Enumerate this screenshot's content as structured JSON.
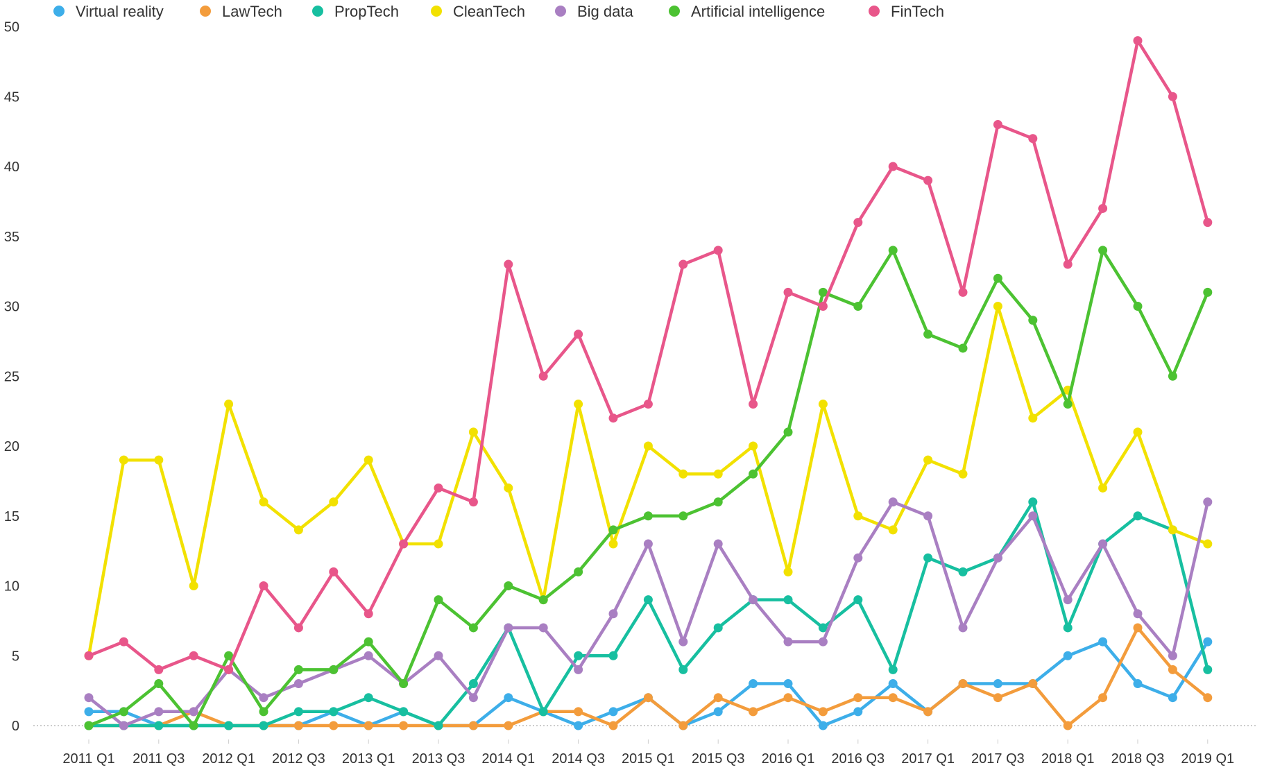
{
  "chart_data": {
    "type": "line",
    "title": "",
    "xlabel": "",
    "ylabel": "",
    "ylim": [
      0,
      50
    ],
    "y_ticks": [
      0,
      5,
      10,
      15,
      20,
      25,
      30,
      35,
      40,
      45,
      50
    ],
    "grid": false,
    "legend_position": "top-left",
    "categories": [
      "2011 Q1",
      "2011 Q2",
      "2011 Q3",
      "2011 Q4",
      "2012 Q1",
      "2012 Q2",
      "2012 Q3",
      "2012 Q4",
      "2013 Q1",
      "2013 Q2",
      "2013 Q3",
      "2013 Q4",
      "2014 Q1",
      "2014 Q2",
      "2014 Q3",
      "2014 Q4",
      "2015 Q1",
      "2015 Q2",
      "2015 Q3",
      "2015 Q4",
      "2016 Q1",
      "2016 Q2",
      "2016 Q3",
      "2016 Q4",
      "2017 Q1",
      "2017 Q2",
      "2017 Q3",
      "2017 Q4",
      "2018 Q1",
      "2018 Q2",
      "2018 Q3",
      "2018 Q4",
      "2019 Q1"
    ],
    "x_tick_labels": [
      "2011 Q1",
      "2011 Q3",
      "2012 Q1",
      "2012 Q3",
      "2013 Q1",
      "2013 Q3",
      "2014 Q1",
      "2014 Q3",
      "2015 Q1",
      "2015 Q3",
      "2016 Q1",
      "2016 Q3",
      "2017 Q1",
      "2017 Q3",
      "2018 Q1",
      "2018 Q3",
      "2019 Q1"
    ],
    "series": [
      {
        "name": "Virtual reality",
        "color": "#3daee9",
        "values": [
          1,
          1,
          0,
          0,
          0,
          0,
          0,
          1,
          0,
          1,
          0,
          0,
          2,
          1,
          0,
          1,
          2,
          0,
          1,
          3,
          3,
          0,
          1,
          3,
          1,
          3,
          3,
          3,
          5,
          6,
          3,
          2,
          6
        ]
      },
      {
        "name": "LawTech",
        "color": "#f39c3c",
        "values": [
          0,
          0,
          0,
          1,
          0,
          0,
          0,
          0,
          0,
          0,
          0,
          0,
          0,
          1,
          1,
          0,
          2,
          0,
          2,
          1,
          2,
          1,
          2,
          2,
          1,
          3,
          2,
          3,
          0,
          2,
          7,
          4,
          2
        ]
      },
      {
        "name": "PropTech",
        "color": "#17bfa0",
        "values": [
          0,
          0,
          0,
          0,
          0,
          0,
          1,
          1,
          2,
          1,
          0,
          3,
          7,
          1,
          5,
          5,
          9,
          4,
          7,
          9,
          9,
          7,
          9,
          4,
          12,
          11,
          12,
          16,
          7,
          13,
          15,
          14,
          4
        ]
      },
      {
        "name": "CleanTech",
        "color": "#f2e100",
        "values": [
          5,
          19,
          19,
          10,
          23,
          16,
          14,
          16,
          19,
          13,
          13,
          21,
          17,
          9,
          23,
          13,
          20,
          18,
          18,
          20,
          11,
          23,
          15,
          14,
          19,
          18,
          30,
          22,
          24,
          17,
          21,
          14,
          13
        ]
      },
      {
        "name": "Big data",
        "color": "#a97fc2",
        "values": [
          2,
          0,
          1,
          1,
          4,
          2,
          3,
          4,
          5,
          3,
          5,
          2,
          7,
          7,
          4,
          8,
          13,
          6,
          13,
          9,
          6,
          6,
          12,
          16,
          15,
          7,
          12,
          15,
          9,
          13,
          8,
          5,
          16
        ]
      },
      {
        "name": "Artificial intelligence",
        "color": "#4cc232",
        "values": [
          0,
          1,
          3,
          0,
          5,
          1,
          4,
          4,
          6,
          3,
          9,
          7,
          10,
          9,
          11,
          14,
          15,
          15,
          16,
          18,
          21,
          31,
          30,
          34,
          28,
          27,
          32,
          29,
          23,
          34,
          30,
          25,
          31
        ]
      },
      {
        "name": "FinTech",
        "color": "#e8568a",
        "values": [
          5,
          6,
          4,
          5,
          4,
          10,
          7,
          11,
          8,
          13,
          17,
          16,
          33,
          25,
          28,
          22,
          23,
          33,
          34,
          23,
          31,
          30,
          36,
          40,
          39,
          31,
          43,
          42,
          33,
          37,
          49,
          45,
          36
        ]
      }
    ]
  }
}
